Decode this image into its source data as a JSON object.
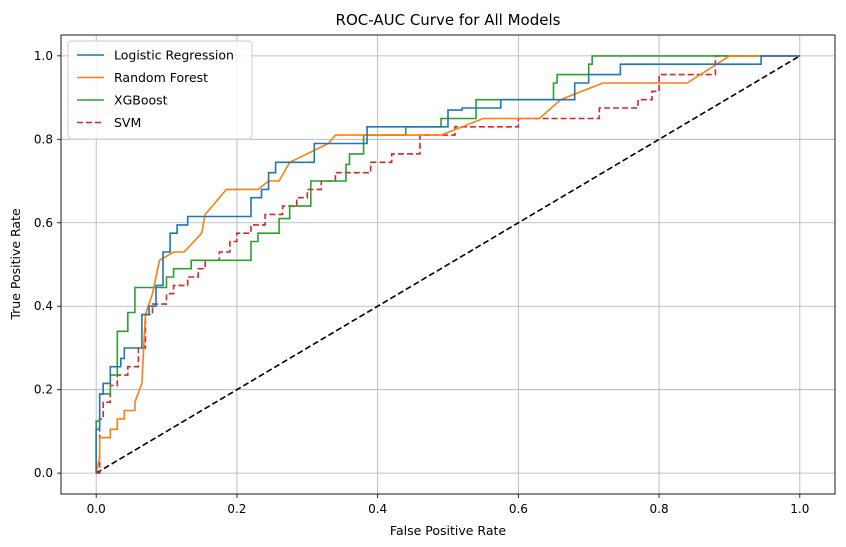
{
  "chart_data": {
    "type": "line",
    "title": "ROC-AUC Curve for All Models",
    "xlabel": "False Positive Rate",
    "ylabel": "True Positive Rate",
    "xlim": [
      -0.05,
      1.05
    ],
    "ylim": [
      -0.05,
      1.05
    ],
    "xticks": [
      "0.0",
      "0.2",
      "0.4",
      "0.6",
      "0.8",
      "1.0"
    ],
    "yticks": [
      "0.0",
      "0.2",
      "0.4",
      "0.6",
      "0.8",
      "1.0"
    ],
    "grid": true,
    "legend_position": "top-left",
    "series": [
      {
        "name": "Logistic Regression",
        "color": "#1f77b4",
        "style": "solid",
        "x": [
          0,
          0,
          0.005,
          0.005,
          0.01,
          0.01,
          0.02,
          0.02,
          0.035,
          0.035,
          0.04,
          0.04,
          0.045,
          0.045,
          0.065,
          0.065,
          0.075,
          0.075,
          0.085,
          0.085,
          0.095,
          0.095,
          0.105,
          0.105,
          0.115,
          0.115,
          0.13,
          0.13,
          0.145,
          0.145,
          0.155,
          0.155,
          0.22,
          0.22,
          0.235,
          0.235,
          0.245,
          0.245,
          0.255,
          0.255,
          0.31,
          0.31,
          0.385,
          0.385,
          0.5,
          0.5,
          0.52,
          0.52,
          0.575,
          0.575,
          0.68,
          0.68,
          0.7,
          0.7,
          0.745,
          0.745,
          0.945,
          0.945,
          1.0
        ],
        "y": [
          0,
          0.105,
          0.105,
          0.19,
          0.19,
          0.215,
          0.215,
          0.255,
          0.255,
          0.275,
          0.275,
          0.3,
          0.3,
          0.3,
          0.3,
          0.38,
          0.38,
          0.4,
          0.4,
          0.45,
          0.45,
          0.53,
          0.53,
          0.575,
          0.575,
          0.595,
          0.595,
          0.615,
          0.615,
          0.615,
          0.615,
          0.615,
          0.615,
          0.66,
          0.66,
          0.68,
          0.68,
          0.72,
          0.72,
          0.745,
          0.745,
          0.79,
          0.79,
          0.83,
          0.83,
          0.87,
          0.87,
          0.875,
          0.875,
          0.895,
          0.895,
          0.935,
          0.935,
          0.955,
          0.955,
          0.98,
          0.98,
          1.0,
          1.0
        ]
      },
      {
        "name": "Random Forest",
        "color": "#ff7f0e",
        "style": "solid",
        "x": [
          0,
          0.005,
          0.005,
          0.02,
          0.02,
          0.03,
          0.03,
          0.04,
          0.04,
          0.055,
          0.055,
          0.065,
          0.07,
          0.07,
          0.08,
          0.09,
          0.09,
          0.11,
          0.11,
          0.125,
          0.15,
          0.155,
          0.165,
          0.185,
          0.22,
          0.23,
          0.245,
          0.26,
          0.275,
          0.33,
          0.34,
          0.44,
          0.49,
          0.55,
          0.63,
          0.66,
          0.72,
          0.84,
          0.9,
          1.0
        ],
        "y": [
          0,
          0.04,
          0.085,
          0.085,
          0.105,
          0.105,
          0.13,
          0.13,
          0.15,
          0.15,
          0.17,
          0.215,
          0.38,
          0.38,
          0.43,
          0.51,
          0.51,
          0.53,
          0.53,
          0.53,
          0.575,
          0.62,
          0.64,
          0.68,
          0.68,
          0.68,
          0.7,
          0.7,
          0.745,
          0.79,
          0.81,
          0.81,
          0.81,
          0.85,
          0.85,
          0.895,
          0.935,
          0.935,
          1.0,
          1.0
        ]
      },
      {
        "name": "XGBoost",
        "color": "#2ca02c",
        "style": "solid",
        "x": [
          0,
          0,
          0.005,
          0.005,
          0.02,
          0.02,
          0.03,
          0.03,
          0.045,
          0.045,
          0.055,
          0.055,
          0.1,
          0.1,
          0.11,
          0.11,
          0.135,
          0.135,
          0.15,
          0.15,
          0.22,
          0.22,
          0.23,
          0.23,
          0.26,
          0.26,
          0.275,
          0.275,
          0.305,
          0.305,
          0.355,
          0.355,
          0.36,
          0.36,
          0.38,
          0.38,
          0.44,
          0.44,
          0.49,
          0.49,
          0.54,
          0.54,
          0.65,
          0.65,
          0.655,
          0.655,
          0.7,
          0.7,
          0.705,
          0.705,
          1.0
        ],
        "y": [
          0,
          0.125,
          0.125,
          0.19,
          0.19,
          0.235,
          0.235,
          0.34,
          0.34,
          0.385,
          0.385,
          0.445,
          0.445,
          0.47,
          0.47,
          0.49,
          0.49,
          0.51,
          0.51,
          0.51,
          0.51,
          0.555,
          0.555,
          0.575,
          0.575,
          0.61,
          0.61,
          0.64,
          0.64,
          0.7,
          0.7,
          0.74,
          0.74,
          0.765,
          0.765,
          0.81,
          0.81,
          0.83,
          0.83,
          0.85,
          0.85,
          0.895,
          0.895,
          0.935,
          0.935,
          0.955,
          0.955,
          0.98,
          0.98,
          1.0,
          1.0
        ]
      },
      {
        "name": "SVM",
        "color": "#d62728",
        "style": "dashed",
        "x": [
          0,
          0.005,
          0.005,
          0.01,
          0.01,
          0.02,
          0.02,
          0.03,
          0.03,
          0.045,
          0.045,
          0.06,
          0.06,
          0.07,
          0.07,
          0.08,
          0.08,
          0.1,
          0.1,
          0.11,
          0.11,
          0.13,
          0.13,
          0.145,
          0.145,
          0.155,
          0.155,
          0.175,
          0.175,
          0.19,
          0.19,
          0.2,
          0.2,
          0.22,
          0.22,
          0.24,
          0.24,
          0.265,
          0.265,
          0.285,
          0.285,
          0.3,
          0.3,
          0.32,
          0.32,
          0.34,
          0.34,
          0.36,
          0.36,
          0.39,
          0.39,
          0.42,
          0.42,
          0.46,
          0.46,
          0.51,
          0.51,
          0.6,
          0.6,
          0.715,
          0.715,
          0.77,
          0.77,
          0.79,
          0.79,
          0.8,
          0.8,
          0.88,
          0.88,
          1.0
        ],
        "y": [
          0,
          0,
          0.13,
          0.13,
          0.17,
          0.17,
          0.21,
          0.21,
          0.235,
          0.235,
          0.255,
          0.255,
          0.3,
          0.3,
          0.38,
          0.38,
          0.405,
          0.405,
          0.43,
          0.43,
          0.45,
          0.45,
          0.47,
          0.47,
          0.49,
          0.49,
          0.51,
          0.51,
          0.53,
          0.53,
          0.555,
          0.555,
          0.575,
          0.575,
          0.595,
          0.595,
          0.62,
          0.62,
          0.64,
          0.64,
          0.66,
          0.66,
          0.68,
          0.68,
          0.7,
          0.7,
          0.72,
          0.72,
          0.72,
          0.72,
          0.745,
          0.745,
          0.765,
          0.765,
          0.81,
          0.81,
          0.83,
          0.83,
          0.85,
          0.85,
          0.875,
          0.875,
          0.895,
          0.895,
          0.915,
          0.915,
          0.955,
          0.955,
          1.0,
          1.0
        ]
      },
      {
        "name": "",
        "color": "#000000",
        "style": "dashed",
        "legend": false,
        "x": [
          0,
          1
        ],
        "y": [
          0,
          1
        ]
      }
    ]
  }
}
